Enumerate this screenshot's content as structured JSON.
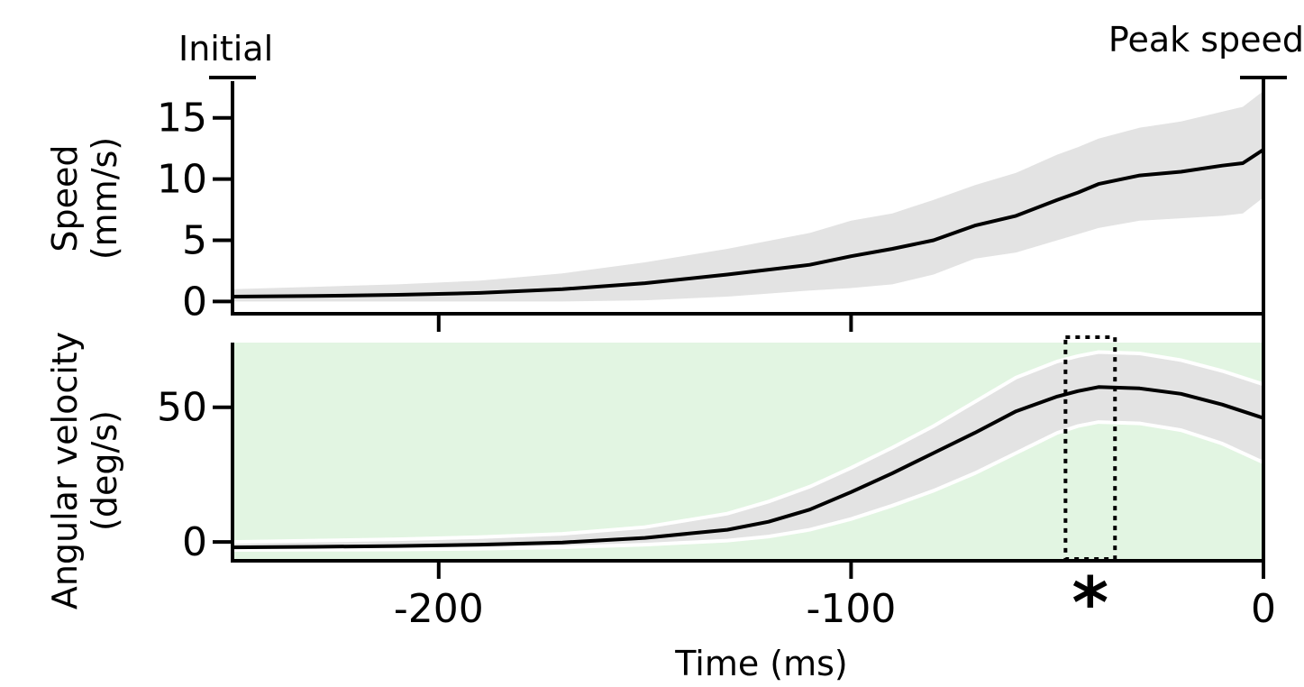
{
  "chart_data": [
    {
      "type": "line",
      "panel": "top",
      "xlabel": "",
      "ylabel": [
        "Speed",
        "(mm/s)"
      ],
      "xlim": [
        -250,
        0
      ],
      "ylim": [
        -1,
        18
      ],
      "yticks": [
        0,
        5,
        10,
        15
      ],
      "ytick_labels": [
        "0",
        "5",
        "10",
        "15"
      ],
      "marker_labels": {
        "start": "Initial",
        "end": "Peak speed"
      },
      "series": [
        {
          "x": [
            -250,
            -230,
            -210,
            -190,
            -170,
            -150,
            -130,
            -110,
            -100,
            -90,
            -80,
            -70,
            -60,
            -50,
            -45,
            -40,
            -30,
            -20,
            -10,
            -5,
            0
          ],
          "y": [
            0.4,
            0.45,
            0.55,
            0.7,
            1.0,
            1.5,
            2.2,
            3.0,
            3.7,
            4.3,
            5.0,
            6.2,
            7.0,
            8.3,
            8.9,
            9.6,
            10.3,
            10.6,
            11.1,
            11.3,
            12.4
          ],
          "band_lower": [
            0.0,
            0.0,
            0.0,
            0.0,
            0.0,
            0.1,
            0.4,
            0.9,
            1.1,
            1.4,
            2.2,
            3.5,
            4.0,
            5.0,
            5.5,
            6.0,
            6.6,
            6.8,
            7.0,
            7.2,
            8.5
          ],
          "band_upper": [
            1.0,
            1.2,
            1.4,
            1.7,
            2.3,
            3.2,
            4.3,
            5.6,
            6.6,
            7.2,
            8.3,
            9.5,
            10.5,
            12.0,
            12.6,
            13.3,
            14.2,
            14.7,
            15.5,
            15.9,
            17.2
          ]
        }
      ],
      "colors": {
        "line": "#000000",
        "band": "#e3e3e3"
      }
    },
    {
      "type": "line",
      "panel": "bottom",
      "xlabel": "Time (ms)",
      "ylabel": [
        "Angular velocity",
        "(deg/s)"
      ],
      "xlim": [
        -250,
        0
      ],
      "ylim": [
        -7,
        74
      ],
      "xticks": [
        -200,
        -100,
        0
      ],
      "xtick_labels": [
        "-200",
        "-100",
        "0"
      ],
      "yticks": [
        0,
        50
      ],
      "ytick_labels": [
        "0",
        "50"
      ],
      "highlight_window_x": [
        -48,
        -36
      ],
      "significance_marker": {
        "x": -42,
        "label": "*"
      },
      "series": [
        {
          "x": [
            -250,
            -230,
            -210,
            -190,
            -170,
            -150,
            -130,
            -120,
            -110,
            -100,
            -90,
            -80,
            -70,
            -60,
            -50,
            -45,
            -40,
            -30,
            -20,
            -10,
            0
          ],
          "y": [
            -2,
            -1.8,
            -1.5,
            -1,
            -0.2,
            1.5,
            4.5,
            7.5,
            12,
            18.5,
            25.5,
            33,
            40.5,
            48.5,
            54,
            56,
            57.5,
            57,
            55,
            51,
            46
          ],
          "band_lower": [
            -3,
            -2.9,
            -2.8,
            -2.5,
            -2.0,
            -1.0,
            0.5,
            2.0,
            4.5,
            8.5,
            13.5,
            19,
            25.5,
            33,
            40.5,
            43,
            44.5,
            44,
            41.5,
            36.5,
            29.5
          ],
          "band_upper": [
            0,
            0.5,
            1.0,
            1.8,
            3.0,
            5.5,
            10.5,
            15,
            20.5,
            27.5,
            35,
            43,
            52,
            61,
            67,
            69,
            70.5,
            70,
            67.5,
            63.5,
            58.5
          ]
        }
      ],
      "colors": {
        "line": "#000000",
        "band": "#e3e3e3",
        "background": "#e2f5e2",
        "band_edge": "#ffffff"
      }
    }
  ]
}
